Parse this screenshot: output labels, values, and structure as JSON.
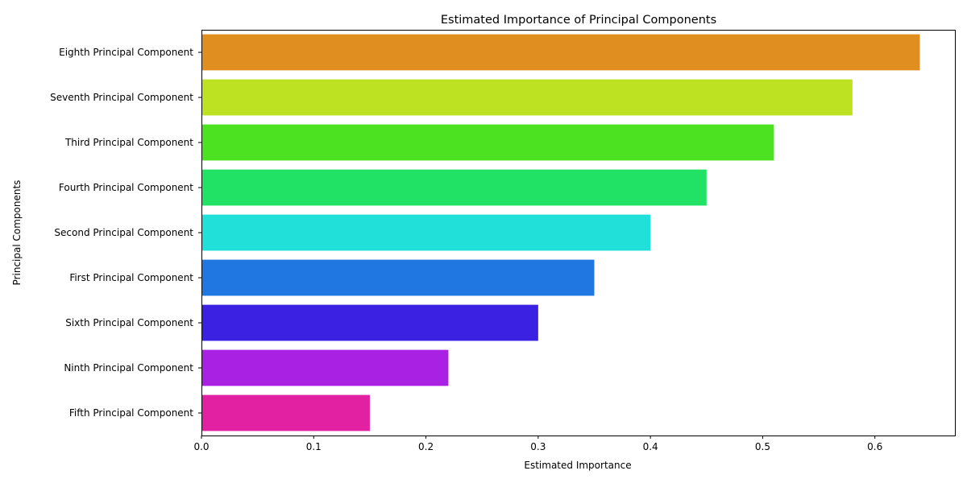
{
  "chart_data": {
    "type": "bar",
    "orientation": "horizontal",
    "title": "Estimated Importance of Principal Components",
    "xlabel": "Estimated Importance",
    "ylabel": "Principal Components",
    "xlim": [
      0,
      0.672
    ],
    "xticks": [
      0.0,
      0.1,
      0.2,
      0.3,
      0.4,
      0.5,
      0.6
    ],
    "xtick_labels": [
      "0.0",
      "0.1",
      "0.2",
      "0.3",
      "0.4",
      "0.5",
      "0.6"
    ],
    "grid": false,
    "legend": "none",
    "categories": [
      "Eighth Principal Component",
      "Seventh Principal Component",
      "Third Principal Component",
      "Fourth Principal Component",
      "Second Principal Component",
      "First Principal Component",
      "Sixth Principal Component",
      "Ninth Principal Component",
      "Fifth Principal Component"
    ],
    "values": [
      0.64,
      0.58,
      0.51,
      0.45,
      0.4,
      0.35,
      0.3,
      0.22,
      0.15
    ],
    "colors": [
      "#e18e20",
      "#bde221",
      "#4de221",
      "#21e264",
      "#21dfd9",
      "#2177e2",
      "#3b21e2",
      "#a921e2",
      "#e221a2"
    ]
  }
}
